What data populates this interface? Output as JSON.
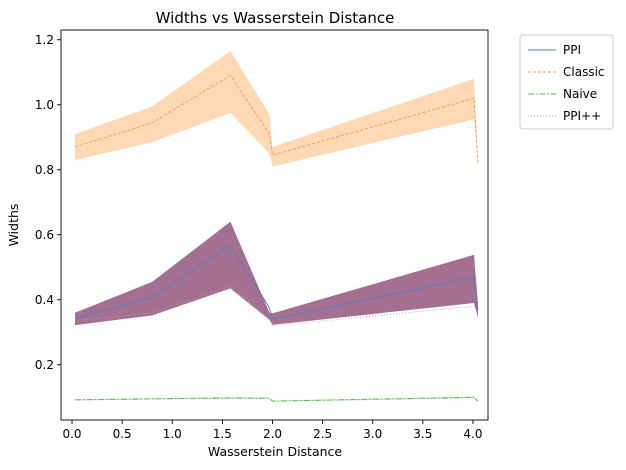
{
  "chart_data": {
    "type": "line",
    "title": "Widths vs Wasserstein Distance",
    "xlabel": "Wasserstein Distance",
    "ylabel": "Widths",
    "xlim": [
      -0.11,
      4.15
    ],
    "ylim": [
      0.03,
      1.23
    ],
    "xticks": [
      0.0,
      0.5,
      1.0,
      1.5,
      2.0,
      2.5,
      3.0,
      3.5,
      4.0
    ],
    "xtick_labels": [
      "0.0",
      "0.5",
      "1.0",
      "1.5",
      "2.0",
      "2.5",
      "3.0",
      "3.5",
      "4.0"
    ],
    "yticks": [
      0.2,
      0.4,
      0.6,
      0.8,
      1.0,
      1.2
    ],
    "ytick_labels": [
      "0.2",
      "0.4",
      "0.6",
      "0.8",
      "1.0",
      "1.2"
    ],
    "grid": false,
    "legend_position": "outside-top-right",
    "x": [
      0.03,
      0.8,
      1.58,
      1.97,
      2.0,
      4.01,
      4.05
    ],
    "series": [
      {
        "name": "PPI",
        "color": "#5a7bb5",
        "dash": "none",
        "values": [
          0.342,
          0.407,
          0.568,
          0.375,
          0.34,
          0.47,
          0.37
        ],
        "band_lower": [
          0.322,
          0.352,
          0.435,
          0.338,
          0.323,
          0.39,
          0.345
        ],
        "band_upper": [
          0.36,
          0.455,
          0.64,
          0.36,
          0.358,
          0.538,
          0.385
        ],
        "band_color": "#b05f72"
      },
      {
        "name": "Classic",
        "color": "#f59c50",
        "dash": "3,2",
        "values": [
          0.87,
          0.945,
          1.09,
          0.91,
          0.845,
          1.02,
          0.82
        ],
        "band_lower": [
          0.83,
          0.885,
          0.975,
          0.85,
          0.81,
          0.955,
          0.82
        ],
        "band_upper": [
          0.91,
          0.995,
          1.165,
          0.97,
          0.87,
          1.08,
          0.83
        ],
        "band_color": "#ffd2a8"
      },
      {
        "name": "Naive",
        "color": "#59b359",
        "dash": "6,2,1.5,2",
        "values": [
          0.092,
          0.095,
          0.098,
          0.097,
          0.088,
          0.1,
          0.088
        ],
        "band_lower": [
          0.09,
          0.093,
          0.095,
          0.095,
          0.086,
          0.097,
          0.086
        ],
        "band_upper": [
          0.094,
          0.097,
          0.1,
          0.099,
          0.09,
          0.102,
          0.09
        ],
        "band_color": "#b9e3b9"
      },
      {
        "name": "PPI++",
        "color": "#b0a0b8",
        "dash": "1,2",
        "values": [
          0.335,
          0.36,
          0.44,
          0.34,
          0.32,
          0.38,
          0.36
        ],
        "band_lower": [
          0.322,
          0.352,
          0.435,
          0.338,
          0.323,
          0.39,
          0.345
        ],
        "band_upper": [
          0.36,
          0.455,
          0.64,
          0.36,
          0.358,
          0.538,
          0.385
        ],
        "band_color": "#8f6c9a"
      }
    ]
  }
}
